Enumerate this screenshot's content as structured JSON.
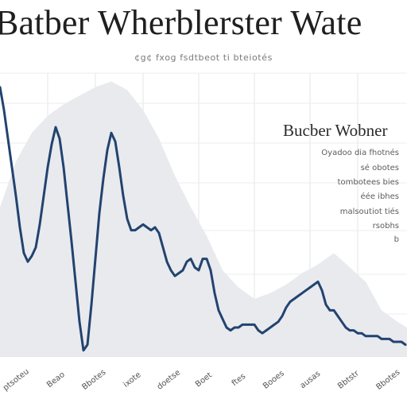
{
  "chart_data": {
    "type": "line",
    "title": "Batber Wherblerster Wate",
    "subtitle": "¢g¢ fxog fsdtbeot ti bteiotés",
    "inset_title": "Bucber Wobner",
    "inset_lines": [
      "Oyadoo dia fhotnés",
      "sé obotes",
      "tombotees bies",
      "éée ibhes",
      "malsoutiot tiés",
      "rsobhs",
      "b"
    ],
    "x_tick_labels": [
      "ptsoteu",
      "Beao",
      "Bbotes",
      "ixote",
      "doetse",
      "Boet",
      "ftes",
      "Booes",
      "ausas",
      "Bbtstr",
      "Bbotes"
    ],
    "grid": true,
    "series": [
      {
        "type": "area",
        "color": "#e8eaee",
        "x": [
          0,
          20,
          40,
          60,
          80,
          100,
          120,
          140,
          160,
          180,
          200,
          220,
          240,
          260,
          280,
          300,
          320,
          340,
          360,
          380,
          400,
          420,
          440,
          460,
          480,
          500,
          512
        ],
        "y": [
          52,
          68,
          78,
          84,
          88,
          91,
          94,
          96,
          93,
          86,
          76,
          63,
          52,
          42,
          30,
          24,
          20,
          22,
          25,
          29,
          32,
          36,
          31,
          26,
          16,
          12,
          10
        ]
      },
      {
        "type": "line",
        "color": "#23436f",
        "x": [
          0,
          5,
          10,
          15,
          20,
          25,
          30,
          35,
          40,
          45,
          50,
          55,
          60,
          65,
          70,
          75,
          80,
          85,
          90,
          95,
          100,
          105,
          110,
          115,
          120,
          125,
          130,
          135,
          140,
          145,
          150,
          155,
          160,
          165,
          170,
          175,
          180,
          185,
          190,
          195,
          200,
          205,
          210,
          215,
          220,
          225,
          230,
          235,
          240,
          245,
          250,
          255,
          260,
          265,
          270,
          275,
          280,
          285,
          290,
          295,
          300,
          305,
          310,
          315,
          320,
          325,
          330,
          335,
          340,
          345,
          350,
          355,
          360,
          365,
          370,
          375,
          380,
          385,
          390,
          395,
          400,
          405,
          410,
          415,
          420,
          425,
          430,
          435,
          440,
          445,
          450,
          455,
          460,
          465,
          470,
          475,
          480,
          485,
          490,
          495,
          500,
          505,
          510
        ],
        "y": [
          94,
          86,
          76,
          66,
          56,
          45,
          36,
          33,
          35,
          38,
          46,
          56,
          66,
          74,
          80,
          76,
          66,
          53,
          40,
          26,
          12,
          2,
          4,
          18,
          34,
          50,
          62,
          72,
          78,
          75,
          66,
          56,
          48,
          44,
          44,
          45,
          46,
          45,
          44,
          45,
          43,
          38,
          33,
          30,
          28,
          29,
          30,
          33,
          34,
          31,
          30,
          34,
          34,
          30,
          22,
          16,
          13,
          10,
          9,
          10,
          10,
          11,
          11,
          11,
          11,
          9,
          8,
          9,
          10,
          11,
          12,
          14,
          17,
          19,
          20,
          21,
          22,
          23,
          24,
          25,
          26,
          23,
          18,
          16,
          16,
          14,
          12,
          10,
          9,
          9,
          8,
          8,
          7,
          7,
          7,
          7,
          6,
          6,
          6,
          5,
          5,
          5,
          4
        ]
      }
    ],
    "xlim": [
      0,
      512
    ],
    "ylim": [
      0,
      100
    ]
  }
}
